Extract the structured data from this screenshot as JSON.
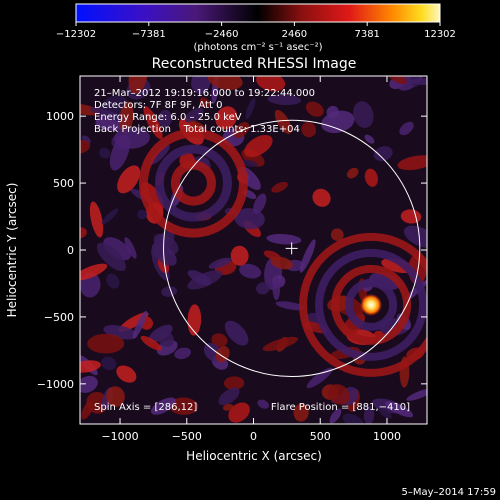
{
  "chart_data": {
    "type": "heatmap",
    "title": "Reconstructed RHESSI Image",
    "xlabel": "Heliocentric X (arcsec)",
    "ylabel": "Heliocentric Y (arcsec)",
    "xlim": [
      -1300,
      1300
    ],
    "ylim": [
      -1300,
      1300
    ],
    "x_ticks": [
      -1000,
      -500,
      0,
      500,
      1000
    ],
    "y_ticks": [
      -1000,
      -500,
      0,
      500,
      1000
    ],
    "x_tick_labels": [
      "−1000",
      "−500",
      "0",
      "500",
      "1000"
    ],
    "y_tick_labels": [
      "−1000",
      "−500",
      "0",
      "500",
      "1000"
    ],
    "colorbar": {
      "ticks": [
        -12302,
        -7381,
        -2460,
        2460,
        7381,
        12302
      ],
      "tick_labels": [
        "−12302",
        "−7381",
        "−2460",
        "2460",
        "7381",
        "12302"
      ],
      "units": "(photons cm⁻² s⁻¹ asec⁻²)",
      "min": -12302,
      "max": 12302
    },
    "info_lines": [
      "21–Mar–2012 19:19:16.000 to 19:22:44.000",
      "Detectors: 7F 8F 9F, Att 0",
      "Energy Range: 6.0 – 25.0 keV",
      "Back Projection    Total counts: 1.33E+04"
    ],
    "spin_axis": "Spin Axis = [286,12]",
    "flare_position": "Flare Position = [881,−410]",
    "solar_limb_radius_arcsec": 960,
    "sun_center_marker": [
      286,
      12
    ],
    "flare_source": [
      881,
      -410
    ],
    "date_stamp": "5–May–2014 17:59"
  }
}
